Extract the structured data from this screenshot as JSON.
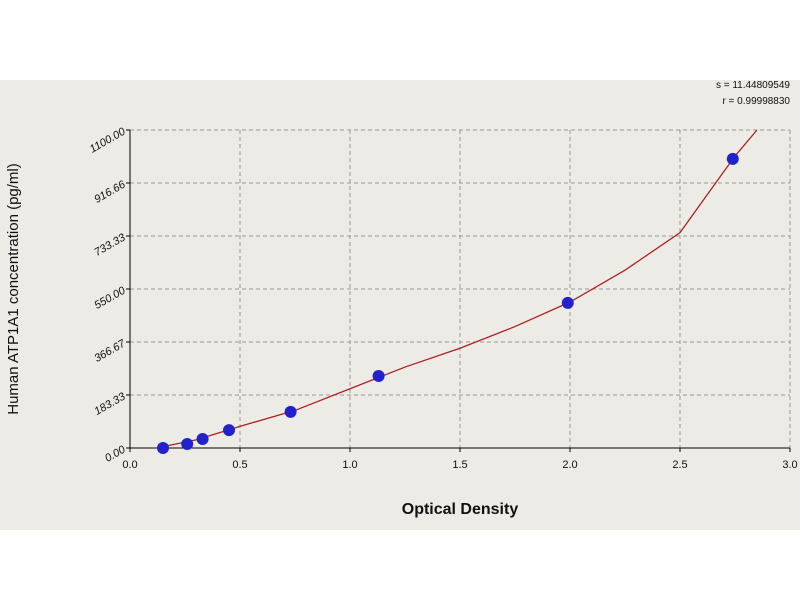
{
  "chart_data": {
    "type": "scatter",
    "x_label": "Optical Density",
    "y_label": "Human ATP1A1 concentration (pg/ml)",
    "annotations": [
      "s = 11.44809549",
      "r = 0.99998830"
    ],
    "xlim": [
      0,
      3.0
    ],
    "ylim": [
      0,
      1100
    ],
    "xticks": [
      {
        "value": 0,
        "label": "0.0"
      },
      0.5,
      {
        "value": 1,
        "label": "1.0"
      },
      1.5,
      {
        "value": 2,
        "label": "2.0"
      },
      2.5,
      {
        "value": 3,
        "label": "3.0"
      }
    ],
    "yticks": [
      {
        "value": 0,
        "label": "0.00"
      },
      183.33,
      {
        "value": 366.67,
        "label": "366.67"
      },
      {
        "value": 550,
        "label": "550.00"
      },
      733.33,
      916.66,
      {
        "value": 1100,
        "label": "1100.00"
      }
    ],
    "grid": true,
    "series": [
      {
        "kind": "points",
        "color": "#2222cc",
        "x": [
          0.15,
          0.26,
          0.33,
          0.45,
          0.73,
          1.13,
          1.99,
          2.74
        ],
        "values": [
          0,
          14,
          31,
          62,
          125,
          249,
          502,
          1000
        ]
      },
      {
        "kind": "curve",
        "color": "#b02020",
        "x": [
          0.12,
          0.3,
          0.5,
          0.75,
          1.0,
          1.25,
          1.5,
          1.75,
          2.0,
          2.25,
          2.5,
          2.75,
          2.85
        ],
        "values": [
          0,
          28,
          75,
          130,
          205,
          280,
          345,
          420,
          505,
          615,
          745,
          1010,
          1100
        ]
      }
    ]
  }
}
